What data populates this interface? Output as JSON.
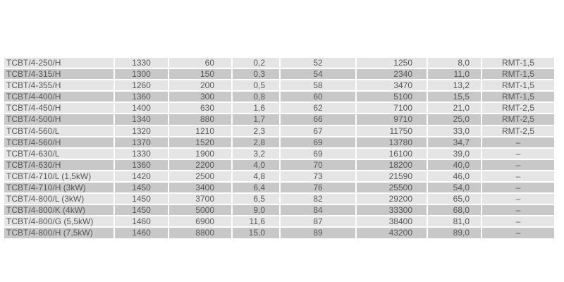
{
  "colors": {
    "row_light": "#e5e5e5",
    "row_dark": "#c8c8c8",
    "text": "#585858"
  },
  "rows": [
    [
      "TCBT/4-250/H",
      "1330",
      "60",
      "0,2",
      "52",
      "1250",
      "8,0",
      "RMT-1,5"
    ],
    [
      "TCBT/4-315/H",
      "1300",
      "150",
      "0,3",
      "54",
      "2340",
      "11,0",
      "RMT-1,5"
    ],
    [
      "TCBT/4-355/H",
      "1260",
      "200",
      "0,5",
      "58",
      "3470",
      "13,2",
      "RMT-1,5"
    ],
    [
      "TCBT/4-400/H",
      "1360",
      "300",
      "0,8",
      "60",
      "5100",
      "15,5",
      "RMT-1,5"
    ],
    [
      "TCBT/4-450/H",
      "1400",
      "630",
      "1,6",
      "62",
      "7100",
      "21,0",
      "RMT-2,5"
    ],
    [
      "TCBT/4-500/H",
      "1340",
      "880",
      "1,7",
      "66",
      "9710",
      "25,0",
      "RMT-2,5"
    ],
    [
      "TCBT/4-560/L",
      "1320",
      "1210",
      "2,3",
      "67",
      "11750",
      "33,0",
      "RMT-2,5"
    ],
    [
      "TCBT/4-560/H",
      "1370",
      "1520",
      "2,8",
      "69",
      "13780",
      "34,7",
      "–"
    ],
    [
      "TCBT/4-630/L",
      "1330",
      "1900",
      "3,2",
      "69",
      "16100",
      "39,0",
      "–"
    ],
    [
      "TCBT/4-630/H",
      "1360",
      "2200",
      "4,0",
      "70",
      "18200",
      "40,0",
      "–"
    ],
    [
      "TCBT/4-710/L (1,5kW)",
      "1420",
      "2500",
      "4,8",
      "73",
      "21590",
      "46,0",
      "–"
    ],
    [
      "TCBT/4-710/H (3kW)",
      "1450",
      "3400",
      "6,4",
      "76",
      "25500",
      "54,0",
      "–"
    ],
    [
      "TCBT/4-800/L (3kW)",
      "1450",
      "3700",
      "6,5",
      "82",
      "29200",
      "65,0",
      "–"
    ],
    [
      "TCBT/4-800/K (4kW)",
      "1450",
      "5000",
      "9,0",
      "84",
      "33300",
      "68,0",
      "–"
    ],
    [
      "TCBT/4-800/G (5,5kW)",
      "1460",
      "6900",
      "11,6",
      "87",
      "38400",
      "81,0",
      "–"
    ],
    [
      "TCBT/4-800/H (7,5kW)",
      "1460",
      "8800",
      "15,0",
      "89",
      "43200",
      "89,0",
      "–"
    ]
  ]
}
